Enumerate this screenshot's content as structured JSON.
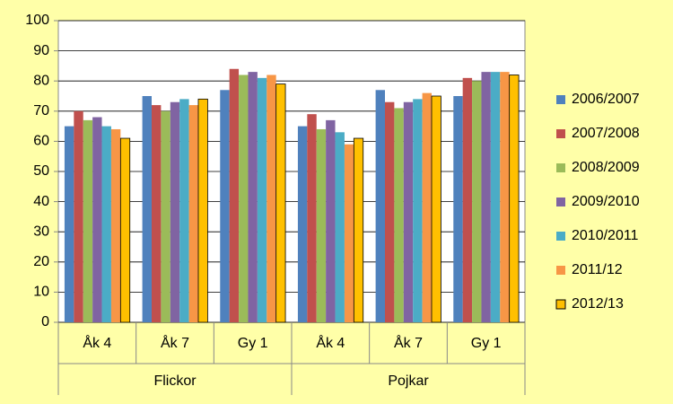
{
  "chart_data": {
    "type": "bar",
    "groups": [
      {
        "label": "Flickor",
        "categories": [
          "Åk 4",
          "Åk 7",
          "Gy 1"
        ]
      },
      {
        "label": "Pojkar",
        "categories": [
          "Åk 4",
          "Åk 7",
          "Gy 1"
        ]
      }
    ],
    "series": [
      {
        "name": "2006/2007",
        "color": "#4f81bd",
        "values": [
          65,
          75,
          77,
          65,
          77,
          75
        ]
      },
      {
        "name": "2007/2008",
        "color": "#c0504d",
        "values": [
          70,
          72,
          84,
          69,
          73,
          81
        ]
      },
      {
        "name": "2008/2009",
        "color": "#9bbb59",
        "values": [
          67,
          70,
          82,
          64,
          71,
          80
        ]
      },
      {
        "name": "2009/2010",
        "color": "#8064a2",
        "values": [
          68,
          73,
          83,
          67,
          73,
          83
        ]
      },
      {
        "name": "2010/2011",
        "color": "#4bacc6",
        "values": [
          65,
          74,
          81,
          63,
          74,
          83
        ]
      },
      {
        "name": "2011/12",
        "color": "#f79646",
        "values": [
          64,
          72,
          82,
          59,
          76,
          83
        ]
      },
      {
        "name": "2012/13",
        "color": "#ffc000",
        "edgecolor": "#000000",
        "values": [
          61,
          74,
          79,
          61,
          75,
          82
        ]
      }
    ],
    "ylim": [
      0,
      100
    ],
    "yticks": [
      0,
      10,
      20,
      30,
      40,
      50,
      60,
      70,
      80,
      90,
      100
    ],
    "grid": true,
    "legend": "right"
  }
}
